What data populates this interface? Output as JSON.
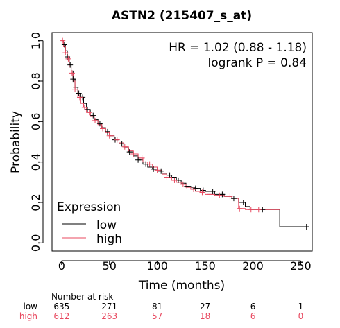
{
  "chart_data": {
    "type": "line",
    "title": "ASTN2 (215407_s_at)",
    "xlabel": "Time (months)",
    "ylabel": "Probability",
    "xlim": [
      -10,
      262
    ],
    "ylim": [
      -0.04,
      1.04
    ],
    "x_ticks": [
      "0",
      "50",
      "100",
      "150",
      "200",
      "250"
    ],
    "y_ticks": [
      "0.0",
      "0.2",
      "0.4",
      "0.6",
      "0.8",
      "1.0"
    ],
    "grid": false,
    "annotations": [
      "HR = 1.02 (0.88 - 1.18)",
      "logrank P = 0.84"
    ],
    "legend": {
      "title": "Expression",
      "position": "bottom-left"
    },
    "series": [
      {
        "name": "low",
        "color": "#000000",
        "times": [
          0,
          2,
          4,
          6,
          8,
          10,
          12,
          14,
          17,
          20,
          23,
          26,
          30,
          34,
          38,
          42,
          46,
          50,
          55,
          60,
          65,
          70,
          75,
          80,
          85,
          90,
          95,
          100,
          105,
          110,
          115,
          120,
          125,
          130,
          135,
          140,
          145,
          150,
          160,
          170,
          178,
          185,
          192,
          197,
          210,
          228,
          256
        ],
        "surv": [
          1.0,
          0.98,
          0.95,
          0.92,
          0.88,
          0.85,
          0.81,
          0.77,
          0.74,
          0.72,
          0.69,
          0.66,
          0.63,
          0.61,
          0.59,
          0.57,
          0.55,
          0.53,
          0.51,
          0.49,
          0.47,
          0.45,
          0.43,
          0.41,
          0.39,
          0.375,
          0.365,
          0.355,
          0.345,
          0.335,
          0.325,
          0.31,
          0.295,
          0.28,
          0.275,
          0.27,
          0.26,
          0.255,
          0.24,
          0.23,
          0.22,
          0.2,
          0.18,
          0.165,
          0.165,
          0.08,
          0.08
        ],
        "censor_times": [
          3,
          6,
          9,
          12,
          15,
          18,
          22,
          27,
          33,
          40,
          48,
          56,
          63,
          71,
          80,
          88,
          96,
          104,
          113,
          122,
          131,
          140,
          148,
          158,
          168,
          180,
          190,
          210,
          256
        ]
      },
      {
        "name": "high",
        "color": "#e8485f",
        "times": [
          0,
          2,
          4,
          6,
          8,
          10,
          12,
          14,
          17,
          20,
          23,
          26,
          30,
          34,
          38,
          42,
          46,
          50,
          55,
          60,
          65,
          70,
          75,
          80,
          85,
          90,
          95,
          100,
          105,
          110,
          115,
          120,
          125,
          130,
          135,
          140,
          145,
          150,
          160,
          170,
          178,
          185,
          192,
          197,
          210,
          228
        ],
        "surv": [
          1.0,
          0.97,
          0.94,
          0.91,
          0.87,
          0.84,
          0.8,
          0.76,
          0.72,
          0.69,
          0.67,
          0.645,
          0.625,
          0.605,
          0.585,
          0.565,
          0.545,
          0.53,
          0.51,
          0.495,
          0.475,
          0.455,
          0.44,
          0.42,
          0.4,
          0.39,
          0.375,
          0.36,
          0.34,
          0.325,
          0.31,
          0.3,
          0.29,
          0.275,
          0.265,
          0.255,
          0.25,
          0.24,
          0.235,
          0.23,
          0.22,
          0.17,
          0.165,
          0.165,
          0.165,
          0.165
        ],
        "censor_times": [
          1,
          4,
          7,
          11,
          14,
          19,
          24,
          29,
          35,
          43,
          50,
          58,
          66,
          75,
          84,
          92,
          100,
          110,
          118,
          127,
          138,
          147,
          155,
          165,
          176,
          186,
          198,
          206
        ]
      }
    ],
    "risk_table": {
      "title": "Number at risk",
      "groups": [
        {
          "name": "low",
          "color": "#000000",
          "counts": [
            "635",
            "271",
            "81",
            "27",
            "6",
            "1"
          ]
        },
        {
          "name": "high",
          "color": "#e8485f",
          "counts": [
            "612",
            "263",
            "57",
            "18",
            "6",
            "0"
          ]
        }
      ]
    }
  }
}
